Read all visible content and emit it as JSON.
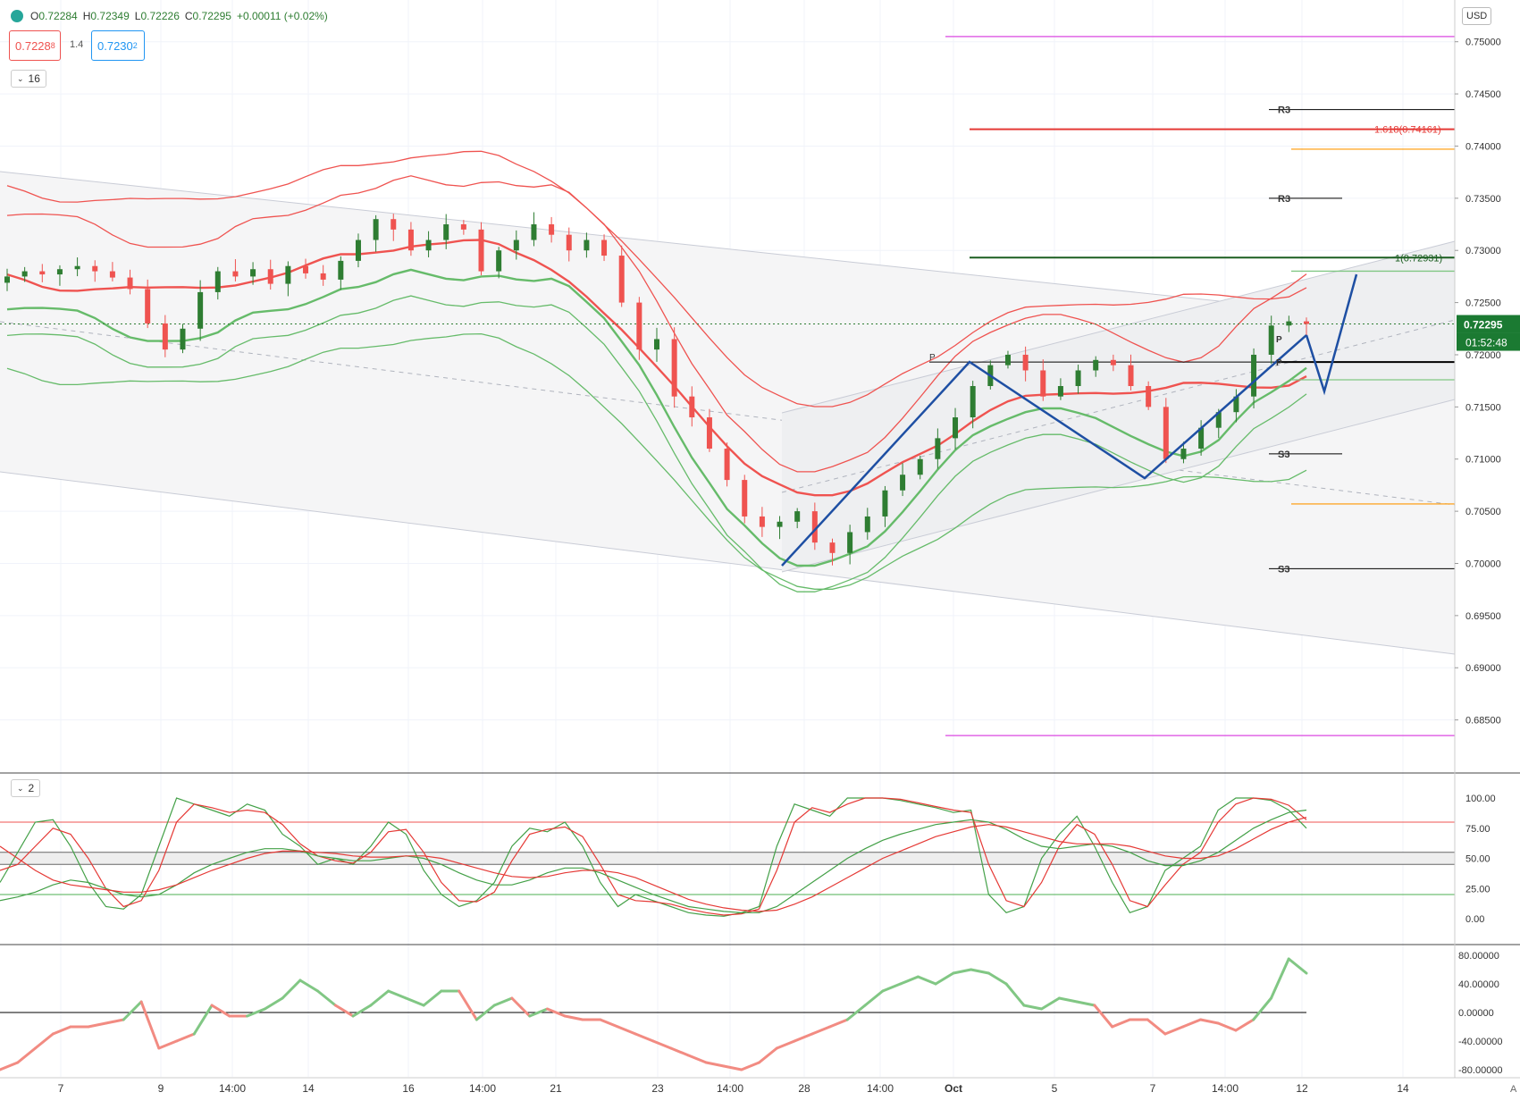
{
  "header": {
    "ohlc": {
      "o_label": "O",
      "open": "0.72284",
      "h_label": "H",
      "high": "0.72349",
      "l_label": "L",
      "low": "0.72226",
      "c_label": "C",
      "close": "0.72295",
      "change": "+0.00011 (+0.02%)"
    },
    "sell_price": "0.7228",
    "sell_price_sup": "8",
    "spread": "1.4",
    "buy_price": "0.7230",
    "buy_price_sup": "2",
    "currency": "USD",
    "indicator_count_main": "16",
    "indicator_count_osc": "2"
  },
  "price_axis": {
    "labels": [
      "0.75000",
      "0.74500",
      "0.74000",
      "0.73500",
      "0.73000",
      "0.72500",
      "0.72000",
      "0.71500",
      "0.71000",
      "0.70500",
      "0.70000",
      "0.69500",
      "0.69000",
      "0.68500"
    ],
    "top_label": "0.",
    "current_price": "0.72295",
    "countdown": "01:52:48"
  },
  "time_axis": {
    "labels": [
      "7",
      "9",
      "14:00",
      "14",
      "16",
      "14:00",
      "21",
      "23",
      "14:00",
      "28",
      "14:00",
      "Oct",
      "5",
      "7",
      "14:00",
      "12",
      "14"
    ]
  },
  "annotations": {
    "r3_upper": "R3",
    "r3_lower": "R3",
    "s3_upper": "S3",
    "s3_lower": "S3",
    "pivot_a": "P",
    "pivot_b": "P",
    "pivot_c": "P",
    "fib_1618": "1.618(0.74161)",
    "fib_1": "1(0.72931)"
  },
  "stoch_axis": {
    "labels": [
      "100.00",
      "75.00",
      "50.00",
      "25.00",
      "0.00"
    ]
  },
  "momentum_axis": {
    "labels": [
      "80.00000",
      "40.00000",
      "0.00000",
      "-40.00000",
      "-80.00000"
    ]
  },
  "auto_label": "A",
  "colors": {
    "up": "#2e7d32",
    "down": "#ef5350",
    "green_line": "#66bb6a",
    "red_line": "#ef5350",
    "blue_pattern": "#1e4fa3",
    "fib_red": "#e53935",
    "fib_green": "#1b5e20",
    "violet": "#e066e6",
    "orange": "#ff9800"
  },
  "chart_data": [
    {
      "type": "candlestick",
      "title": "",
      "ylim": [
        0.68,
        0.754
      ],
      "x_ticks": [
        "7",
        "9",
        "14:00",
        "14",
        "16",
        "14:00",
        "21",
        "23",
        "14:00",
        "28",
        "14:00",
        "Oct",
        "5",
        "7",
        "14:00",
        "12",
        "14"
      ],
      "close_path": [
        0.7275,
        0.728,
        0.7277,
        0.7282,
        0.7285,
        0.728,
        0.7274,
        0.7263,
        0.723,
        0.7205,
        0.7225,
        0.726,
        0.728,
        0.7275,
        0.7282,
        0.7268,
        0.7285,
        0.7278,
        0.7272,
        0.729,
        0.731,
        0.733,
        0.732,
        0.73,
        0.731,
        0.7325,
        0.732,
        0.728,
        0.73,
        0.731,
        0.7325,
        0.7315,
        0.73,
        0.731,
        0.7295,
        0.725,
        0.7205,
        0.7215,
        0.716,
        0.714,
        0.711,
        0.708,
        0.7045,
        0.7035,
        0.704,
        0.705,
        0.702,
        0.701,
        0.703,
        0.7045,
        0.707,
        0.7085,
        0.71,
        0.712,
        0.714,
        0.717,
        0.719,
        0.72,
        0.7185,
        0.716,
        0.717,
        0.7185,
        0.7195,
        0.719,
        0.717,
        0.715,
        0.71,
        0.711,
        0.713,
        0.7145,
        0.716,
        0.72,
        0.7228,
        0.7232,
        0.72295
      ],
      "current_price": 0.72295,
      "levels": {
        "R3_upper": 0.7435,
        "fib_1618": 0.74161,
        "orange_upper": 0.7397,
        "R3_mid": 0.735,
        "fib_1": 0.72931,
        "pivot": 0.7193,
        "S3_upper": 0.7105,
        "orange_lower": 0.7057,
        "S3_lower": 0.6995,
        "violet_upper": 0.7505,
        "violet_lower": 0.6835
      }
    },
    {
      "type": "line",
      "title": "",
      "ylim": [
        -10,
        110
      ],
      "levels": [
        80,
        20
      ],
      "series": [
        {
          "values": [
            30,
            55,
            80,
            82,
            60,
            30,
            10,
            8,
            20,
            60,
            100,
            95,
            90,
            85,
            95,
            90,
            70,
            60,
            45,
            50,
            45,
            60,
            80,
            70,
            40,
            20,
            10,
            15,
            30,
            60,
            75,
            72,
            80,
            60,
            30,
            10,
            20,
            15,
            10,
            5,
            3,
            2,
            5,
            10,
            60,
            95,
            90,
            85,
            100,
            100,
            100,
            98,
            95,
            92,
            88,
            90,
            20,
            5,
            10,
            50,
            70,
            85,
            60,
            30,
            5,
            10,
            40,
            50,
            60,
            90,
            100,
            100,
            98,
            90,
            75
          ]
        },
        {
          "values": [
            40,
            45,
            60,
            75,
            70,
            50,
            25,
            10,
            15,
            40,
            80,
            95,
            92,
            88,
            90,
            88,
            78,
            62,
            52,
            48,
            46,
            55,
            72,
            74,
            55,
            30,
            15,
            14,
            22,
            48,
            70,
            74,
            76,
            68,
            45,
            20,
            15,
            14,
            12,
            8,
            5,
            3,
            4,
            8,
            40,
            80,
            92,
            88,
            95,
            100,
            100,
            99,
            96,
            93,
            90,
            88,
            45,
            15,
            10,
            30,
            60,
            78,
            70,
            45,
            15,
            10,
            28,
            45,
            55,
            80,
            95,
            100,
            99,
            94,
            82
          ]
        },
        {
          "values": [
            15,
            18,
            22,
            28,
            32,
            30,
            25,
            20,
            18,
            20,
            28,
            38,
            45,
            50,
            55,
            58,
            58,
            56,
            52,
            50,
            48,
            48,
            50,
            52,
            50,
            45,
            38,
            32,
            28,
            28,
            32,
            38,
            42,
            42,
            38,
            32,
            26,
            20,
            15,
            10,
            8,
            6,
            5,
            5,
            10,
            20,
            30,
            40,
            50,
            58,
            65,
            70,
            74,
            78,
            80,
            82,
            80,
            74,
            66,
            60,
            58,
            60,
            62,
            60,
            55,
            48,
            44,
            44,
            48,
            55,
            65,
            75,
            82,
            88,
            90
          ]
        },
        {
          "values": [
            60,
            50,
            40,
            32,
            28,
            26,
            24,
            22,
            22,
            24,
            28,
            34,
            40,
            45,
            50,
            54,
            56,
            56,
            55,
            54,
            52,
            51,
            51,
            52,
            52,
            50,
            46,
            42,
            38,
            35,
            34,
            35,
            38,
            40,
            40,
            38,
            34,
            28,
            22,
            16,
            12,
            9,
            7,
            6,
            7,
            12,
            18,
            26,
            34,
            42,
            50,
            56,
            62,
            68,
            72,
            76,
            78,
            76,
            72,
            68,
            64,
            62,
            62,
            62,
            60,
            56,
            52,
            50,
            50,
            52,
            58,
            66,
            74,
            80,
            84
          ]
        }
      ]
    },
    {
      "type": "line",
      "title": "",
      "ylim": [
        -90,
        90
      ],
      "series": [
        {
          "values": [
            -80,
            -70,
            -50,
            -30,
            -20,
            -20,
            -15,
            -10,
            15,
            -50,
            -40,
            -30,
            10,
            -5,
            -5,
            5,
            20,
            45,
            30,
            10,
            -5,
            10,
            30,
            20,
            10,
            30,
            30,
            -10,
            10,
            20,
            -5,
            5,
            -5,
            -10,
            -10,
            -20,
            -30,
            -40,
            -50,
            -60,
            -70,
            -75,
            -80,
            -70,
            -50,
            -40,
            -30,
            -20,
            -10,
            10,
            30,
            40,
            50,
            40,
            55,
            60,
            55,
            40,
            10,
            5,
            20,
            15,
            10,
            -20,
            -10,
            -10,
            -30,
            -20,
            -10,
            -15,
            -25,
            -10,
            20,
            75,
            55
          ]
        }
      ]
    }
  ]
}
